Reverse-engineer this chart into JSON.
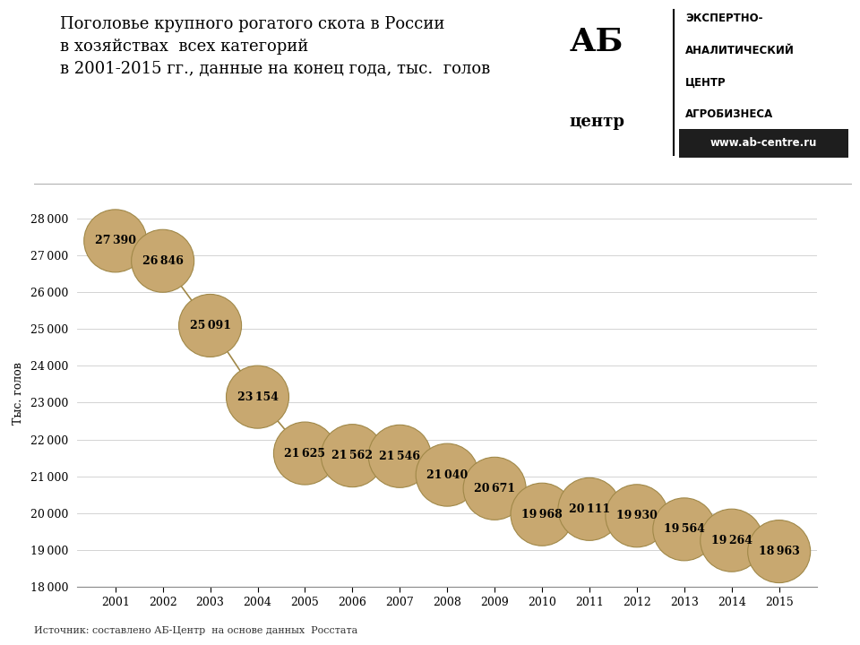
{
  "years": [
    2001,
    2002,
    2003,
    2004,
    2005,
    2006,
    2007,
    2008,
    2009,
    2010,
    2011,
    2012,
    2013,
    2014,
    2015
  ],
  "values": [
    27390,
    26846,
    25091,
    23154,
    21625,
    21562,
    21546,
    21040,
    20671,
    19968,
    20111,
    19930,
    19564,
    19264,
    18963
  ],
  "circle_color": "#C8A870",
  "circle_edge_color": "#A08848",
  "line_color": "#A08848",
  "background_color": "#FFFFFF",
  "title_line1": "Поголовье крупного рогатого скота в России",
  "title_line2": "в хозяйствах  всех категорий",
  "title_line3": "в 2001-2015 гг., данные на конец года, тыс.  голов",
  "ylabel": "Тыс. голов",
  "ylim_min": 18000,
  "ylim_max": 28500,
  "yticks": [
    18000,
    19000,
    20000,
    21000,
    22000,
    23000,
    24000,
    25000,
    26000,
    27000,
    28000
  ],
  "source_text": "Источник: составлено АБ-Центр  на основе данных  Росстата",
  "title_fontsize": 13,
  "label_fontsize": 9,
  "axis_fontsize": 9,
  "source_fontsize": 8,
  "ylabel_fontsize": 9
}
